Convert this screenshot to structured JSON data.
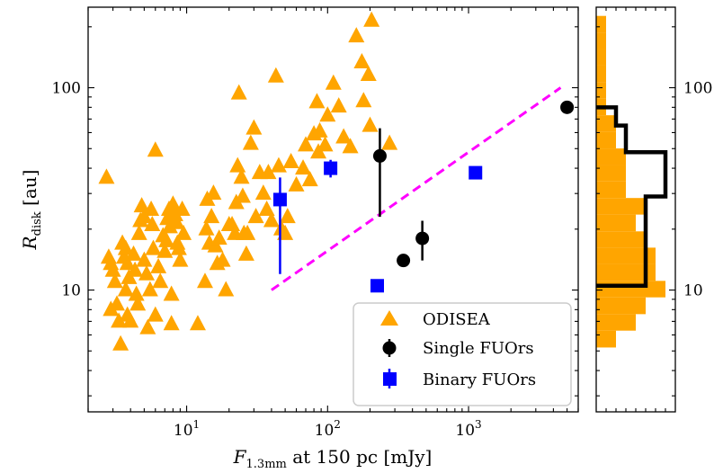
{
  "chart_data": {
    "type": "scatter",
    "xscale": "log",
    "yscale": "log",
    "xlim": [
      2,
      6000
    ],
    "ylim": [
      2.5,
      250
    ],
    "xlabel": {
      "main": "F",
      "sub": "1.3mm",
      "rest": " at 150 pc [mJy]"
    },
    "ylabel": {
      "main": "R",
      "sub": "disk",
      "rest": " [au]"
    },
    "x_tick_labels": [
      {
        "value": 10,
        "base": "10",
        "exp": "1"
      },
      {
        "value": 100,
        "base": "10",
        "exp": "2"
      },
      {
        "value": 1000,
        "base": "10",
        "exp": "3"
      }
    ],
    "y_tick_labels": [
      {
        "value": 10,
        "label": "10"
      },
      {
        "value": 100,
        "label": "100"
      }
    ],
    "reference_line": {
      "x": [
        40,
        4500
      ],
      "y": [
        10,
        100
      ],
      "color": "#ff00ff",
      "style": "dashed"
    },
    "legend": {
      "position": "lower-right",
      "entries": [
        "ODISEA",
        "Single FUOrs",
        "Binary FUOrs"
      ]
    },
    "series": [
      {
        "name": "ODISEA",
        "marker": "triangle",
        "color": "#ffa500",
        "points": [
          [
            2.7,
            36
          ],
          [
            2.8,
            14.5
          ],
          [
            2.9,
            13.5
          ],
          [
            3.0,
            12.5
          ],
          [
            3.1,
            11
          ],
          [
            2.9,
            8
          ],
          [
            3.2,
            8.5
          ],
          [
            3.3,
            7
          ],
          [
            3.4,
            5.4
          ],
          [
            3.5,
            17
          ],
          [
            3.6,
            14.5
          ],
          [
            3.7,
            16
          ],
          [
            3.8,
            13.5
          ],
          [
            3.9,
            11.5
          ],
          [
            3.7,
            10
          ],
          [
            3.8,
            7.5
          ],
          [
            4.0,
            7
          ],
          [
            4.2,
            15
          ],
          [
            4.3,
            12.5
          ],
          [
            4.4,
            9.5
          ],
          [
            4.5,
            8.5
          ],
          [
            4.6,
            19
          ],
          [
            4.7,
            22
          ],
          [
            4.8,
            26
          ],
          [
            5.0,
            23
          ],
          [
            5.0,
            14
          ],
          [
            5.2,
            12
          ],
          [
            5.3,
            6.5
          ],
          [
            5.5,
            10
          ],
          [
            5.6,
            25
          ],
          [
            5.7,
            21
          ],
          [
            5.8,
            16
          ],
          [
            6.0,
            49
          ],
          [
            6.0,
            7.5
          ],
          [
            6.3,
            13
          ],
          [
            6.5,
            11
          ],
          [
            6.8,
            18.5
          ],
          [
            7.0,
            15.5
          ],
          [
            7.2,
            17.5
          ],
          [
            7.3,
            22.5
          ],
          [
            7.5,
            25
          ],
          [
            7.6,
            20.5
          ],
          [
            7.8,
            9.5
          ],
          [
            7.8,
            6.8
          ],
          [
            8.0,
            26.5
          ],
          [
            8.3,
            23.5
          ],
          [
            8.5,
            21.5
          ],
          [
            8.6,
            17
          ],
          [
            8.8,
            16
          ],
          [
            9.0,
            14
          ],
          [
            9.3,
            25
          ],
          [
            9.5,
            19
          ],
          [
            12.0,
            6.8
          ],
          [
            13.5,
            11
          ],
          [
            13.8,
            20
          ],
          [
            14.0,
            28
          ],
          [
            14.5,
            17
          ],
          [
            15.0,
            23
          ],
          [
            15.5,
            30
          ],
          [
            16.0,
            16.5
          ],
          [
            16.5,
            13.5
          ],
          [
            17.0,
            18
          ],
          [
            18.0,
            14
          ],
          [
            19.0,
            10
          ],
          [
            20.0,
            21
          ],
          [
            21.0,
            21
          ],
          [
            22.0,
            19
          ],
          [
            22.5,
            27
          ],
          [
            23.0,
            41
          ],
          [
            23.5,
            94
          ],
          [
            24.5,
            36
          ],
          [
            25.0,
            29
          ],
          [
            25.5,
            19
          ],
          [
            26.5,
            15
          ],
          [
            27.0,
            19
          ],
          [
            28.5,
            53
          ],
          [
            30.0,
            63
          ],
          [
            31.0,
            23
          ],
          [
            33.0,
            38
          ],
          [
            35.0,
            30
          ],
          [
            37.0,
            25
          ],
          [
            38.0,
            38
          ],
          [
            40.0,
            22
          ],
          [
            43.0,
            114
          ],
          [
            45.0,
            41
          ],
          [
            47.0,
            20
          ],
          [
            50.0,
            19
          ],
          [
            52.0,
            23
          ],
          [
            55.0,
            43
          ],
          [
            60.0,
            33
          ],
          [
            67.0,
            40
          ],
          [
            70.0,
            52
          ],
          [
            75.0,
            35
          ],
          [
            80.0,
            59
          ],
          [
            84.0,
            85
          ],
          [
            86.0,
            48
          ],
          [
            88.0,
            61
          ],
          [
            96.0,
            52
          ],
          [
            100.0,
            73
          ],
          [
            110.0,
            105
          ],
          [
            120.0,
            81
          ],
          [
            130.0,
            57
          ],
          [
            145.0,
            51
          ],
          [
            160.0,
            180
          ],
          [
            175.0,
            134
          ],
          [
            180.0,
            86
          ],
          [
            195.0,
            116
          ],
          [
            200.0,
            65
          ],
          [
            205.0,
            215
          ],
          [
            275.0,
            53
          ]
        ]
      },
      {
        "name": "Single FUOrs",
        "marker": "circle",
        "color": "#000000",
        "points": [
          {
            "x": 235,
            "y": 46,
            "ylo": 23,
            "yhi": 63
          },
          {
            "x": 345,
            "y": 14
          },
          {
            "x": 470,
            "y": 18,
            "ylo": 14,
            "yhi": 22
          },
          {
            "x": 5000,
            "y": 80
          }
        ]
      },
      {
        "name": "Binary FUOrs",
        "marker": "square",
        "color": "#0000ff",
        "points": [
          {
            "x": 46,
            "y": 28,
            "ylo": 12,
            "yhi": 36
          },
          {
            "x": 105,
            "y": 40,
            "ylo": 36,
            "yhi": 44
          },
          {
            "x": 225,
            "y": 10.5
          },
          {
            "x": 1120,
            "y": 38
          }
        ]
      }
    ],
    "histogram": {
      "filled": {
        "color": "#ffa500",
        "bins": [
          {
            "ylo": 5.2,
            "yhi": 6.3,
            "count": 2
          },
          {
            "ylo": 6.3,
            "yhi": 7.6,
            "count": 4
          },
          {
            "ylo": 7.6,
            "yhi": 9.2,
            "count": 5
          },
          {
            "ylo": 9.2,
            "yhi": 11.1,
            "count": 7
          },
          {
            "ylo": 11.1,
            "yhi": 13.4,
            "count": 6
          },
          {
            "ylo": 13.4,
            "yhi": 16.2,
            "count": 6
          },
          {
            "ylo": 16.2,
            "yhi": 19.5,
            "count": 5
          },
          {
            "ylo": 19.5,
            "yhi": 23.6,
            "count": 4
          },
          {
            "ylo": 23.6,
            "yhi": 28.5,
            "count": 5
          },
          {
            "ylo": 28.5,
            "yhi": 34.4,
            "count": 3
          },
          {
            "ylo": 34.4,
            "yhi": 41.5,
            "count": 3
          },
          {
            "ylo": 41.5,
            "yhi": 50.1,
            "count": 3
          },
          {
            "ylo": 50.1,
            "yhi": 60.5,
            "count": 2
          },
          {
            "ylo": 60.5,
            "yhi": 73.1,
            "count": 2
          },
          {
            "ylo": 73.1,
            "yhi": 88.2,
            "count": 1
          },
          {
            "ylo": 88.2,
            "yhi": 106.5,
            "count": 1
          },
          {
            "ylo": 106.5,
            "yhi": 128.6,
            "count": 1
          },
          {
            "ylo": 128.6,
            "yhi": 155.3,
            "count": 1
          },
          {
            "ylo": 155.3,
            "yhi": 187.5,
            "count": 1
          },
          {
            "ylo": 187.5,
            "yhi": 226.4,
            "count": 1
          }
        ]
      },
      "outline": {
        "color": "#000000",
        "bins": [
          {
            "ylo": 10.5,
            "yhi": 29,
            "count": 5
          },
          {
            "ylo": 29,
            "yhi": 48,
            "count": 7
          },
          {
            "ylo": 48,
            "yhi": 65,
            "count": 3
          },
          {
            "ylo": 65,
            "yhi": 80,
            "count": 2
          }
        ]
      },
      "xlim": [
        0,
        8
      ]
    }
  }
}
